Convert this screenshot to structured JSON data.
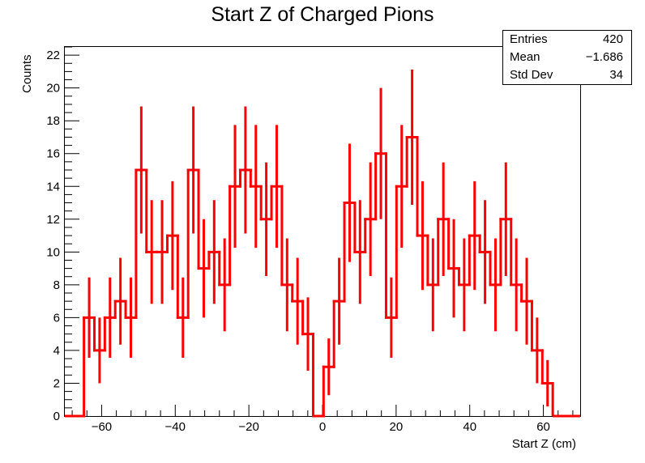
{
  "chart_data": {
    "type": "histogram",
    "title": "Start Z of Charged Pions",
    "xlabel": "Start Z (cm)",
    "ylabel": "Counts",
    "xlim": [
      -70,
      70
    ],
    "ylim": [
      0,
      22.5
    ],
    "xticks": [
      -60,
      -40,
      -20,
      0,
      20,
      40,
      60
    ],
    "xtick_labels": [
      "−60",
      "−40",
      "−20",
      "0",
      "20",
      "40",
      "60"
    ],
    "yticks": [
      0,
      2,
      4,
      6,
      8,
      10,
      12,
      14,
      16,
      18,
      20,
      22
    ],
    "bin_width": 2.83,
    "bin_edges_start": -64.8,
    "values": [
      6,
      4,
      6,
      7,
      6,
      15,
      10,
      10,
      11,
      6,
      15,
      9,
      10,
      8,
      14,
      15,
      14,
      12,
      14,
      8,
      7,
      5,
      0,
      3,
      7,
      13,
      10,
      12,
      16,
      6,
      14,
      17,
      11,
      8,
      12,
      9,
      8,
      11,
      10,
      8,
      12,
      8,
      7,
      4,
      2
    ],
    "color": "#ff0000",
    "grid": false,
    "legend": "none",
    "stats": {
      "entries_label": "Entries",
      "entries_value": "420",
      "mean_label": "Mean",
      "mean_value": "−1.686",
      "stddev_label": "Std Dev",
      "stddev_value": "34"
    }
  }
}
